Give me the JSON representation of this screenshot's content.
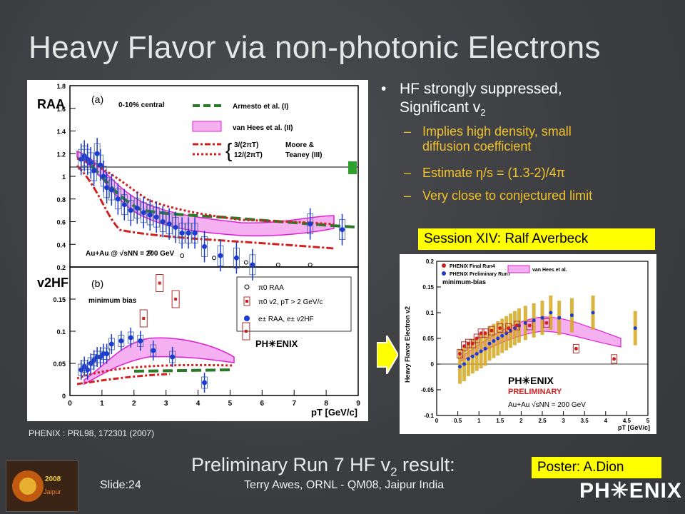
{
  "slide": {
    "title": "Heavy Flavor via non-photonic Electrons",
    "bullets": {
      "main_line1": "HF strongly suppressed,",
      "main_line2": "Significant v",
      "main_sub": "2",
      "items": [
        {
          "dash": "–",
          "line1": "Implies high density, small",
          "line2": "diffusion coefficient"
        },
        {
          "dash": "–",
          "line1": "Estimate η/s = (1.3-2)/4π"
        },
        {
          "dash": "–",
          "line1": "Very close to conjectured limit"
        }
      ]
    },
    "session_label": "Session XIV: Ralf Averbeck",
    "poster_label": "Poster: A.Dion",
    "caption": "PHENIX : PRL98, 172301 (2007)",
    "prelim_text": "Preliminary Run 7 HF v",
    "prelim_sub": "2",
    "prelim_after": " result:",
    "footer_slide": "Slide:24",
    "footer_author": "Terry Awes, ORNL - QM08, Jaipur India",
    "footer_logo": "PH✳ENIX",
    "conf_logo_text": "2008 Jaipur India"
  },
  "left_figure": {
    "panel_a_label": "(a)",
    "panel_b_label": "(b)",
    "central_label": "0-10% central",
    "minbias_label": "minimum bias",
    "collision_label": "Au+Au @ √sNN = 200 GeV",
    "ylabel_top": "RAA",
    "ylabel_bottom": "v2HF",
    "xlabel": "pT [GeV/c]",
    "legend_top": [
      "Armesto et al. (I)",
      "van Hees et al. (II)",
      "3/(2πT)",
      "12/(2πT)",
      "Moore &",
      "Teaney (III)"
    ],
    "legend_bottom": [
      "π0 RAA",
      "π0 v2, pT > 2 GeV/c",
      "e± RAA, e± v2HF"
    ],
    "phenix_label": "PH✳ENIX",
    "yticks_top": [
      "1.8",
      "1.6",
      "1.4",
      "1.2",
      "1",
      "0.8",
      "0.6",
      "0.4",
      "0.2"
    ],
    "yticks_bottom": [
      "0.15",
      "0.1",
      "0.05",
      "0"
    ],
    "xticks": [
      "0",
      "1",
      "2",
      "3",
      "4",
      "5",
      "6",
      "7",
      "8",
      "9"
    ]
  },
  "right_figure": {
    "ylabel": "Heavy Flavor Electron v2",
    "xlabel": "pT [GeV/c]",
    "minbias_label": "minimum-bias",
    "legend": [
      "PHENIX Final Run4",
      "PHENIX Preliminary Run7",
      "van Hees et al."
    ],
    "phenix_label": "PH✳ENIX",
    "preliminary_label": "PRELIMINARY",
    "collision_label": "Au+Au √sNN = 200 GeV",
    "yticks": [
      "0.2",
      "0.15",
      "0.1",
      "0.05",
      "0",
      "-0.05",
      "-0.1"
    ],
    "xticks": [
      "0",
      "0.5",
      "1",
      "1.5",
      "2",
      "2.5",
      "3",
      "3.5",
      "4",
      "4.5",
      "5"
    ]
  },
  "chart_data": [
    {
      "type": "scatter",
      "title": "",
      "xlabel": "pT [GeV/c]",
      "ylabel": "RAA",
      "xlim": [
        0,
        9
      ],
      "ylim": [
        0.2,
        1.8
      ],
      "series": [
        {
          "name": "e± RAA",
          "x": [
            0.35,
            0.45,
            0.55,
            0.65,
            0.75,
            0.85,
            0.95,
            1.05,
            1.15,
            1.3,
            1.5,
            1.7,
            1.9,
            2.1,
            2.3,
            2.5,
            2.7,
            2.9,
            3.1,
            3.3,
            3.5,
            3.7,
            3.9,
            4.2,
            4.7,
            5.2,
            5.7,
            7.5,
            8.5
          ],
          "y": [
            1.15,
            1.18,
            1.15,
            1.12,
            1.05,
            1.2,
            1.1,
            1.0,
            0.9,
            0.88,
            0.8,
            0.75,
            0.7,
            0.72,
            0.68,
            0.66,
            0.64,
            0.6,
            0.58,
            0.55,
            0.5,
            0.5,
            0.5,
            0.38,
            0.3,
            0.28,
            0.22,
            0.58,
            0.53
          ]
        },
        {
          "name": "π0 RAA",
          "x": [
            2.5,
            3.5,
            4.5,
            5.5,
            6.5,
            7.5
          ],
          "y": [
            0.33,
            0.3,
            0.28,
            0.24,
            0.22,
            0.22
          ]
        }
      ]
    },
    {
      "type": "scatter",
      "title": "",
      "xlabel": "pT [GeV/c]",
      "ylabel": "v2HF",
      "xlim": [
        0,
        9
      ],
      "ylim": [
        0,
        0.2
      ],
      "series": [
        {
          "name": "π0 v2, pT > 2 GeV/c",
          "x": [
            2.3,
            2.8,
            3.3,
            5.5
          ],
          "y": [
            0.12,
            0.175,
            0.15,
            0.1
          ]
        },
        {
          "name": "e± RAA, e± v2HF",
          "x": [
            0.35,
            0.45,
            0.55,
            0.65,
            0.75,
            0.85,
            0.95,
            1.05,
            1.15,
            1.3,
            1.6,
            1.9,
            2.2,
            2.6,
            3.2,
            4.2
          ],
          "y": [
            0.04,
            0.045,
            0.04,
            0.05,
            0.055,
            0.06,
            0.06,
            0.065,
            0.065,
            0.08,
            0.085,
            0.09,
            0.085,
            0.07,
            0.06,
            0.02
          ]
        }
      ]
    },
    {
      "type": "scatter",
      "title": "",
      "xlabel": "pT [GeV/c]",
      "ylabel": "Heavy Flavor Electron v2",
      "xlim": [
        0,
        5
      ],
      "ylim": [
        -0.1,
        0.2
      ],
      "series": [
        {
          "name": "PHENIX Final Run4",
          "x": [
            0.55,
            0.65,
            0.75,
            0.85,
            0.95,
            1.05,
            1.15,
            1.3,
            1.5,
            1.7,
            1.9,
            2.2,
            2.6,
            3.3,
            4.2
          ],
          "y": [
            0.02,
            0.035,
            0.04,
            0.04,
            0.05,
            0.06,
            0.06,
            0.065,
            0.07,
            0.07,
            0.075,
            0.075,
            0.08,
            0.03,
            0.01
          ]
        },
        {
          "name": "PHENIX Preliminary Run7",
          "x": [
            0.55,
            0.65,
            0.75,
            0.85,
            0.95,
            1.05,
            1.15,
            1.25,
            1.35,
            1.45,
            1.55,
            1.65,
            1.75,
            1.85,
            1.95,
            2.1,
            2.3,
            2.5,
            2.7,
            2.9,
            3.2,
            3.7,
            4.7
          ],
          "y": [
            -0.005,
            0.0,
            0.01,
            0.015,
            0.02,
            0.025,
            0.03,
            0.04,
            0.045,
            0.05,
            0.055,
            0.06,
            0.065,
            0.07,
            0.075,
            0.08,
            0.085,
            0.09,
            0.1,
            0.09,
            0.095,
            0.1,
            0.07
          ]
        }
      ]
    }
  ]
}
